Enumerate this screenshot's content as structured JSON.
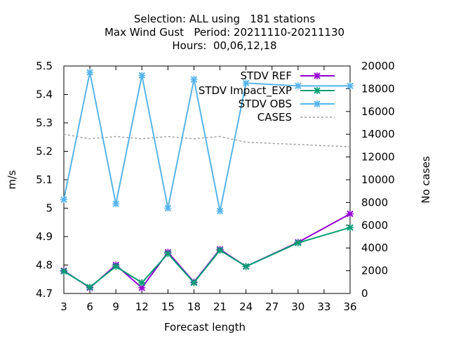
{
  "title_lines": [
    "Selection: ALL using   181 stations",
    "Max Wind Gust   Period: 20211110-20211130",
    "Hours:  00,06,12,18"
  ],
  "chart_data": {
    "type": "line",
    "xlabel": "Forecast length",
    "ylabel": "m/s",
    "y2label": "No cases",
    "xlim": [
      3,
      36
    ],
    "ylim": [
      4.7,
      5.5
    ],
    "y2lim": [
      0,
      20000
    ],
    "x_ticks": [
      3,
      6,
      9,
      12,
      15,
      18,
      21,
      24,
      27,
      30,
      33,
      36
    ],
    "y_ticks": [
      "4.7",
      "4.8",
      "4.9",
      "5",
      "5.1",
      "5.2",
      "5.3",
      "5.4",
      "5.5"
    ],
    "y2_ticks": [
      "0",
      "2000",
      "4000",
      "6000",
      "8000",
      "10000",
      "12000",
      "14000",
      "16000",
      "18000",
      "20000"
    ],
    "legend_position": "top-right",
    "series": [
      {
        "name": "STDV REF",
        "color": "#9400d3",
        "style": "solid",
        "marker": "x",
        "axis": "y",
        "x": [
          3,
          6,
          9,
          12,
          15,
          18,
          21,
          24,
          30,
          36
        ],
        "values": [
          4.78,
          4.72,
          4.8,
          4.72,
          4.845,
          4.74,
          4.855,
          4.795,
          4.88,
          4.98
        ]
      },
      {
        "name": "STDV Impact_EXP",
        "color": "#009e73",
        "style": "solid",
        "marker": "x",
        "axis": "y",
        "x": [
          3,
          6,
          9,
          12,
          15,
          18,
          21,
          24,
          30,
          36
        ],
        "values": [
          4.778,
          4.722,
          4.795,
          4.738,
          4.84,
          4.738,
          4.852,
          4.795,
          4.878,
          4.932
        ]
      },
      {
        "name": "STDV OBS",
        "color": "#56b4e9",
        "style": "solid",
        "marker": "x",
        "axis": "y",
        "x": [
          3,
          6,
          9,
          12,
          15,
          18,
          21,
          24,
          30,
          36
        ],
        "values": [
          5.03,
          5.478,
          5.015,
          5.467,
          5.0,
          5.453,
          4.99,
          5.44,
          5.43,
          5.43
        ]
      },
      {
        "name": "CASES",
        "color": "#a0a0a0",
        "style": "dashed",
        "marker": "none",
        "axis": "y2",
        "x": [
          3,
          6,
          9,
          12,
          15,
          18,
          21,
          24,
          27,
          30,
          33,
          36
        ],
        "values": [
          14000,
          13600,
          13800,
          13600,
          13800,
          13600,
          13800,
          13300,
          13200,
          13100,
          13000,
          12900
        ]
      }
    ]
  }
}
